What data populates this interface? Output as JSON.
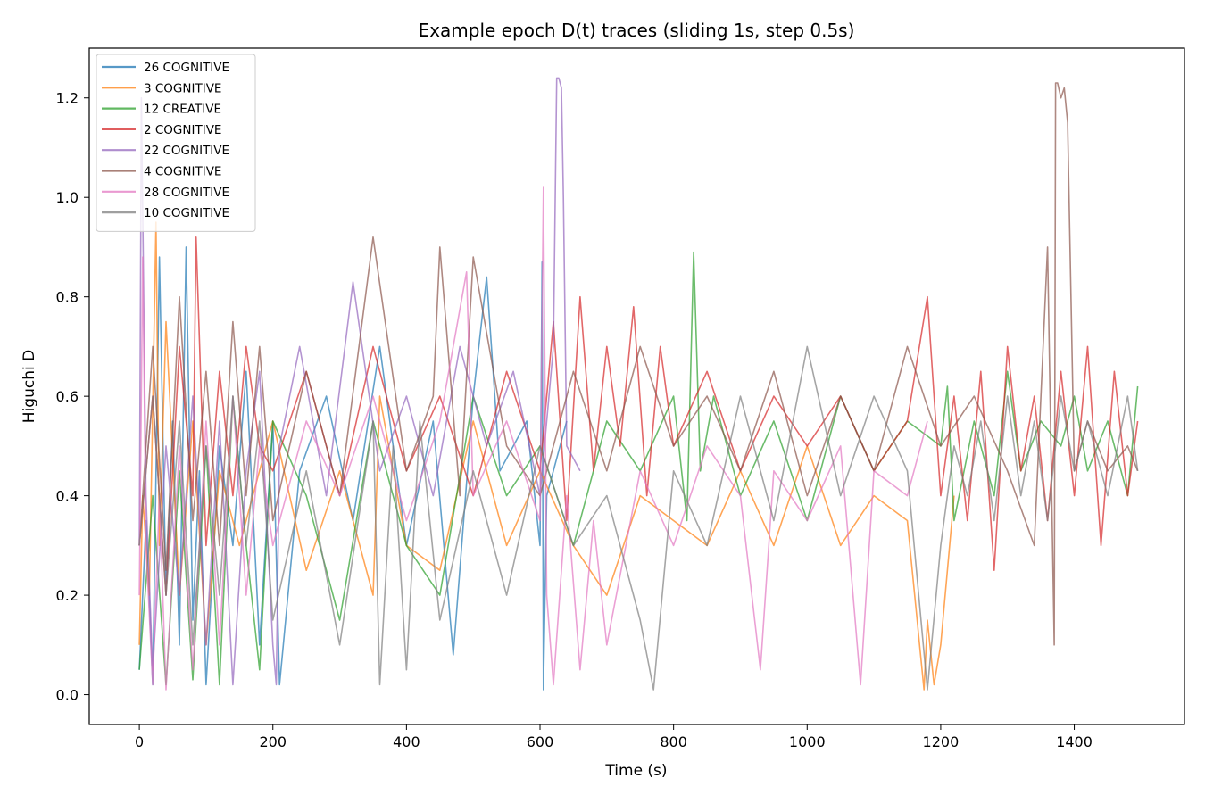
{
  "chart_data": {
    "type": "line",
    "title": "Example epoch D(t) traces (sliding 1s, step 0.5s)",
    "xlabel": "Time (s)",
    "ylabel": "Higuchi D",
    "xlim": [
      -75,
      1565
    ],
    "ylim": [
      -0.06,
      1.3
    ],
    "xticks": [
      0,
      200,
      400,
      600,
      800,
      1000,
      1200,
      1400
    ],
    "yticks": [
      0.0,
      0.2,
      0.4,
      0.6,
      0.8,
      1.0,
      1.2
    ],
    "ytick_labels": [
      "0.0",
      "0.2",
      "0.4",
      "0.6",
      "0.8",
      "1.0",
      "1.2"
    ],
    "grid": false,
    "legend_position": "top-left",
    "series": [
      {
        "name": "26 COGNITIVE",
        "color": "#1f77b4",
        "x": [
          0,
          10,
          20,
          30,
          40,
          50,
          60,
          70,
          80,
          90,
          100,
          120,
          140,
          160,
          180,
          200,
          210,
          240,
          280,
          320,
          360,
          400,
          440,
          470,
          500,
          520,
          540,
          580,
          600,
          603,
          605,
          610,
          640
        ],
        "y": [
          0.05,
          0.35,
          0.02,
          0.88,
          0.2,
          0.55,
          0.1,
          0.9,
          0.15,
          0.45,
          0.02,
          0.5,
          0.3,
          0.65,
          0.1,
          0.55,
          0.02,
          0.45,
          0.6,
          0.35,
          0.7,
          0.3,
          0.55,
          0.08,
          0.6,
          0.84,
          0.45,
          0.55,
          0.3,
          0.87,
          0.01,
          0.4,
          0.55
        ]
      },
      {
        "name": "3 COGNITIVE",
        "color": "#ff7f0e",
        "x": [
          0,
          5,
          15,
          25,
          30,
          40,
          60,
          80,
          100,
          120,
          150,
          200,
          250,
          300,
          350,
          360,
          400,
          450,
          500,
          550,
          600,
          650,
          700,
          750,
          800,
          850,
          900,
          950,
          1000,
          1050,
          1100,
          1150,
          1175,
          1180,
          1190,
          1200,
          1220
        ],
        "y": [
          0.1,
          0.4,
          0.2,
          0.95,
          0.3,
          0.75,
          0.2,
          0.55,
          0.1,
          0.45,
          0.3,
          0.55,
          0.25,
          0.45,
          0.2,
          0.6,
          0.3,
          0.25,
          0.55,
          0.3,
          0.45,
          0.3,
          0.2,
          0.4,
          0.35,
          0.3,
          0.45,
          0.3,
          0.5,
          0.3,
          0.4,
          0.35,
          0.01,
          0.15,
          0.02,
          0.1,
          0.4
        ]
      },
      {
        "name": "12 CREATIVE",
        "color": "#2ca02c",
        "x": [
          0,
          20,
          40,
          60,
          80,
          100,
          120,
          140,
          160,
          180,
          200,
          250,
          300,
          350,
          400,
          450,
          500,
          550,
          600,
          650,
          700,
          750,
          800,
          820,
          830,
          840,
          860,
          900,
          950,
          1000,
          1050,
          1100,
          1150,
          1200,
          1210,
          1220,
          1250,
          1280,
          1300,
          1320,
          1350,
          1380,
          1400,
          1420,
          1450,
          1480,
          1495
        ],
        "y": [
          0.05,
          0.4,
          0.02,
          0.45,
          0.03,
          0.5,
          0.02,
          0.6,
          0.3,
          0.05,
          0.55,
          0.4,
          0.15,
          0.55,
          0.3,
          0.2,
          0.6,
          0.4,
          0.5,
          0.3,
          0.55,
          0.45,
          0.6,
          0.35,
          0.89,
          0.45,
          0.6,
          0.4,
          0.55,
          0.35,
          0.6,
          0.45,
          0.55,
          0.5,
          0.62,
          0.35,
          0.55,
          0.4,
          0.65,
          0.45,
          0.55,
          0.5,
          0.6,
          0.45,
          0.55,
          0.4,
          0.62
        ]
      },
      {
        "name": "2 COGNITIVE",
        "color": "#d62728",
        "x": [
          0,
          20,
          40,
          60,
          80,
          85,
          100,
          120,
          140,
          160,
          180,
          200,
          250,
          300,
          350,
          400,
          450,
          500,
          550,
          600,
          620,
          640,
          660,
          680,
          700,
          720,
          740,
          760,
          780,
          800,
          850,
          900,
          950,
          1000,
          1050,
          1100,
          1150,
          1180,
          1200,
          1220,
          1240,
          1260,
          1280,
          1300,
          1320,
          1340,
          1360,
          1380,
          1400,
          1420,
          1440,
          1460,
          1480,
          1495
        ],
        "y": [
          0.3,
          0.6,
          0.2,
          0.7,
          0.4,
          0.92,
          0.3,
          0.65,
          0.4,
          0.7,
          0.5,
          0.45,
          0.65,
          0.4,
          0.7,
          0.45,
          0.6,
          0.4,
          0.65,
          0.45,
          0.75,
          0.35,
          0.8,
          0.45,
          0.7,
          0.5,
          0.78,
          0.4,
          0.7,
          0.5,
          0.65,
          0.45,
          0.6,
          0.5,
          0.6,
          0.45,
          0.55,
          0.8,
          0.4,
          0.6,
          0.35,
          0.65,
          0.25,
          0.7,
          0.45,
          0.6,
          0.35,
          0.65,
          0.4,
          0.7,
          0.3,
          0.65,
          0.4,
          0.55
        ]
      },
      {
        "name": "22 COGNITIVE",
        "color": "#9467bd",
        "x": [
          0,
          3,
          10,
          20,
          40,
          60,
          80,
          100,
          120,
          140,
          160,
          180,
          200,
          205,
          210,
          240,
          280,
          320,
          360,
          400,
          440,
          480,
          520,
          560,
          600,
          620,
          625,
          628,
          632,
          635,
          640,
          660
        ],
        "y": [
          0.3,
          1.2,
          0.4,
          0.05,
          0.5,
          0.2,
          0.6,
          0.1,
          0.55,
          0.02,
          0.45,
          0.65,
          0.1,
          0.02,
          0.5,
          0.7,
          0.4,
          0.83,
          0.45,
          0.6,
          0.4,
          0.7,
          0.5,
          0.65,
          0.4,
          0.7,
          1.24,
          1.24,
          1.22,
          1.0,
          0.5,
          0.45
        ]
      },
      {
        "name": "4 COGNITIVE",
        "color": "#8c564b",
        "x": [
          0,
          20,
          40,
          60,
          80,
          100,
          120,
          140,
          160,
          180,
          200,
          250,
          300,
          350,
          400,
          440,
          450,
          480,
          500,
          550,
          600,
          650,
          700,
          750,
          800,
          850,
          900,
          950,
          1000,
          1050,
          1100,
          1150,
          1200,
          1250,
          1300,
          1340,
          1360,
          1370,
          1372,
          1375,
          1380,
          1385,
          1390,
          1400,
          1420,
          1450,
          1480,
          1495
        ],
        "y": [
          0.3,
          0.7,
          0.25,
          0.8,
          0.35,
          0.65,
          0.3,
          0.75,
          0.4,
          0.7,
          0.35,
          0.65,
          0.4,
          0.92,
          0.45,
          0.6,
          0.9,
          0.4,
          0.88,
          0.5,
          0.4,
          0.65,
          0.45,
          0.7,
          0.5,
          0.6,
          0.45,
          0.65,
          0.4,
          0.6,
          0.45,
          0.7,
          0.5,
          0.6,
          0.45,
          0.3,
          0.9,
          0.1,
          1.23,
          1.23,
          1.2,
          1.22,
          1.15,
          0.45,
          0.55,
          0.45,
          0.5,
          0.45
        ]
      },
      {
        "name": "28 COGNITIVE",
        "color": "#e377c2",
        "x": [
          0,
          5,
          10,
          20,
          30,
          40,
          60,
          80,
          100,
          120,
          140,
          160,
          180,
          200,
          250,
          300,
          350,
          400,
          450,
          490,
          500,
          550,
          600,
          605,
          610,
          620,
          640,
          660,
          680,
          700,
          750,
          800,
          850,
          900,
          930,
          950,
          1000,
          1050,
          1080,
          1100,
          1150,
          1180
        ],
        "y": [
          0.2,
          0.88,
          0.3,
          0.02,
          0.4,
          0.01,
          0.5,
          0.05,
          0.55,
          0.1,
          0.6,
          0.2,
          0.5,
          0.3,
          0.55,
          0.4,
          0.6,
          0.35,
          0.55,
          0.85,
          0.4,
          0.55,
          0.35,
          1.02,
          0.2,
          0.02,
          0.4,
          0.05,
          0.35,
          0.1,
          0.45,
          0.3,
          0.5,
          0.4,
          0.05,
          0.45,
          0.35,
          0.5,
          0.02,
          0.45,
          0.4,
          0.55
        ]
      },
      {
        "name": "10 COGNITIVE",
        "color": "#7f7f7f",
        "x": [
          0,
          20,
          40,
          60,
          80,
          100,
          120,
          140,
          160,
          180,
          200,
          250,
          300,
          350,
          360,
          380,
          400,
          420,
          450,
          500,
          550,
          600,
          650,
          700,
          750,
          770,
          800,
          850,
          900,
          950,
          1000,
          1050,
          1100,
          1150,
          1180,
          1200,
          1220,
          1240,
          1260,
          1280,
          1300,
          1320,
          1340,
          1360,
          1380,
          1400,
          1420,
          1450,
          1480,
          1495
        ],
        "y": [
          0.3,
          0.6,
          0.2,
          0.55,
          0.1,
          0.5,
          0.2,
          0.6,
          0.3,
          0.55,
          0.15,
          0.45,
          0.1,
          0.55,
          0.02,
          0.5,
          0.05,
          0.55,
          0.15,
          0.45,
          0.2,
          0.5,
          0.3,
          0.4,
          0.15,
          0.01,
          0.45,
          0.3,
          0.6,
          0.35,
          0.7,
          0.4,
          0.6,
          0.45,
          0.01,
          0.3,
          0.5,
          0.4,
          0.55,
          0.35,
          0.6,
          0.4,
          0.55,
          0.35,
          0.6,
          0.45,
          0.55,
          0.4,
          0.6,
          0.45
        ]
      }
    ]
  }
}
